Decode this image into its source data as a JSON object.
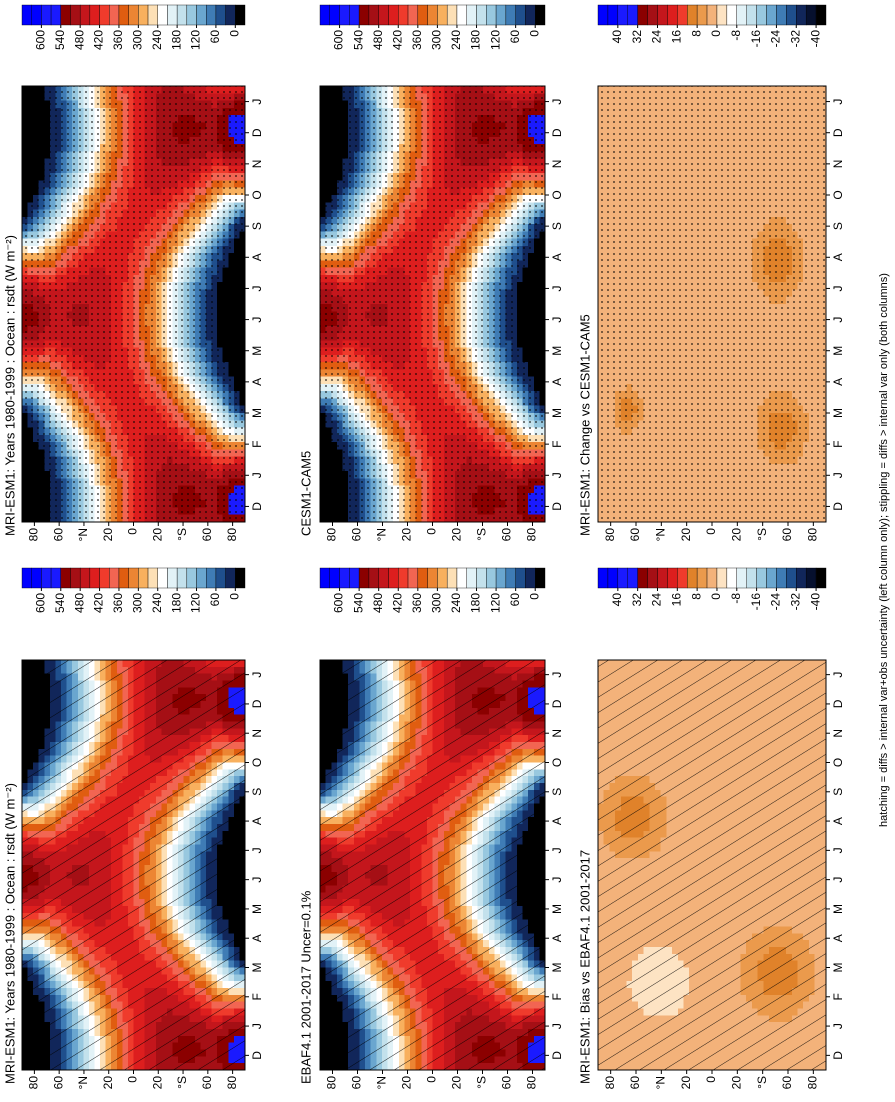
{
  "chart_data": [
    {
      "type": "contour",
      "title": "MRI-ESM1: Years 1980-1999 : Ocean : rsdt (W m⁻²)",
      "categories": [
        "D",
        "J",
        "F",
        "M",
        "A",
        "M",
        "J",
        "J",
        "A",
        "S",
        "O",
        "N",
        "D",
        "J"
      ],
      "ylim": [
        90,
        -90
      ],
      "yticks": [
        80,
        60,
        {
          "value": 40,
          "label": "°N"
        },
        20,
        0,
        {
          "value": -20,
          "label": "20"
        },
        {
          "value": -40,
          "label": "°S"
        },
        {
          "value": -60,
          "label": "60"
        },
        {
          "value": -80,
          "label": "80"
        }
      ],
      "colorbar": {
        "ticks": [
          600,
          540,
          480,
          420,
          360,
          300,
          240,
          180,
          120,
          60,
          0
        ],
        "colors": [
          "#0000ff",
          "#0000ff",
          "#1a1aff",
          "#1a1aff",
          "#8b0000",
          "#a50f15",
          "#c4161c",
          "#dd1e1e",
          "#ef3b2c",
          "#f26552",
          "#e05d10",
          "#ec8533",
          "#f8b05e",
          "#fde0b6",
          "#ffffff",
          "#e2f2f7",
          "#c3e1ec",
          "#98c8df",
          "#6aa6cf",
          "#3f7cb5",
          "#1f4f8d",
          "#11265a",
          "#000000"
        ]
      },
      "overlay": "hatching"
    },
    {
      "type": "contour",
      "title": "MRI-ESM1: Years 1980-1999 : Ocean : rsdt (W m⁻²)",
      "categories": [
        "D",
        "J",
        "F",
        "M",
        "A",
        "M",
        "J",
        "J",
        "A",
        "S",
        "O",
        "N",
        "D",
        "J"
      ],
      "ylim": [
        90,
        -90
      ],
      "yticks": [
        80,
        60,
        {
          "value": 40,
          "label": "°N"
        },
        20,
        0,
        {
          "value": -20,
          "label": "20"
        },
        {
          "value": -40,
          "label": "°S"
        },
        {
          "value": -60,
          "label": "60"
        },
        {
          "value": -80,
          "label": "80"
        }
      ],
      "colorbar": {
        "ticks": [
          600,
          540,
          480,
          420,
          360,
          300,
          240,
          180,
          120,
          60,
          0
        ],
        "colors": [
          "#0000ff",
          "#0000ff",
          "#1a1aff",
          "#1a1aff",
          "#8b0000",
          "#a50f15",
          "#c4161c",
          "#dd1e1e",
          "#ef3b2c",
          "#f26552",
          "#e05d10",
          "#ec8533",
          "#f8b05e",
          "#fde0b6",
          "#ffffff",
          "#e2f2f7",
          "#c3e1ec",
          "#98c8df",
          "#6aa6cf",
          "#3f7cb5",
          "#1f4f8d",
          "#11265a",
          "#000000"
        ]
      },
      "overlay": "stippling"
    },
    {
      "type": "contour",
      "title": "EBAF4.1 2001-2017 Uncer=0.1%",
      "categories": [
        "D",
        "J",
        "F",
        "M",
        "A",
        "M",
        "J",
        "J",
        "A",
        "S",
        "O",
        "N",
        "D",
        "J"
      ],
      "ylim": [
        90,
        -90
      ],
      "yticks": [
        80,
        60,
        {
          "value": 40,
          "label": "°N"
        },
        20,
        0,
        {
          "value": -20,
          "label": "20"
        },
        {
          "value": -40,
          "label": "°S"
        },
        {
          "value": -60,
          "label": "60"
        },
        {
          "value": -80,
          "label": "80"
        }
      ],
      "colorbar": {
        "ticks": [
          600,
          540,
          480,
          420,
          360,
          300,
          240,
          180,
          120,
          60,
          0
        ],
        "colors": [
          "#0000ff",
          "#0000ff",
          "#1a1aff",
          "#1a1aff",
          "#8b0000",
          "#a50f15",
          "#c4161c",
          "#dd1e1e",
          "#ef3b2c",
          "#f26552",
          "#e05d10",
          "#ec8533",
          "#f8b05e",
          "#fde0b6",
          "#ffffff",
          "#e2f2f7",
          "#c3e1ec",
          "#98c8df",
          "#6aa6cf",
          "#3f7cb5",
          "#1f4f8d",
          "#11265a",
          "#000000"
        ]
      },
      "overlay": "hatching"
    },
    {
      "type": "contour",
      "title": "CESM1-CAM5",
      "categories": [
        "D",
        "J",
        "F",
        "M",
        "A",
        "M",
        "J",
        "J",
        "A",
        "S",
        "O",
        "N",
        "D",
        "J"
      ],
      "ylim": [
        90,
        -90
      ],
      "yticks": [
        80,
        60,
        {
          "value": 40,
          "label": "°N"
        },
        20,
        0,
        {
          "value": -20,
          "label": "20"
        },
        {
          "value": -40,
          "label": "°S"
        },
        {
          "value": -60,
          "label": "60"
        },
        {
          "value": -80,
          "label": "80"
        }
      ],
      "colorbar": {
        "ticks": [
          600,
          540,
          480,
          420,
          360,
          300,
          240,
          180,
          120,
          60,
          0
        ],
        "colors": [
          "#0000ff",
          "#0000ff",
          "#1a1aff",
          "#1a1aff",
          "#8b0000",
          "#a50f15",
          "#c4161c",
          "#dd1e1e",
          "#ef3b2c",
          "#f26552",
          "#e05d10",
          "#ec8533",
          "#f8b05e",
          "#fde0b6",
          "#ffffff",
          "#e2f2f7",
          "#c3e1ec",
          "#98c8df",
          "#6aa6cf",
          "#3f7cb5",
          "#1f4f8d",
          "#11265a",
          "#000000"
        ]
      },
      "overlay": "stippling"
    },
    {
      "type": "contour",
      "title": "MRI-ESM1: Bias vs EBAF4.1 2001-2017",
      "categories": [
        "D",
        "J",
        "F",
        "M",
        "A",
        "M",
        "J",
        "J",
        "A",
        "S",
        "O",
        "N",
        "D",
        "J"
      ],
      "ylim": [
        90,
        -90
      ],
      "yticks": [
        80,
        60,
        {
          "value": 40,
          "label": "°N"
        },
        20,
        0,
        {
          "value": -20,
          "label": "20"
        },
        {
          "value": -40,
          "label": "°S"
        },
        {
          "value": -60,
          "label": "60"
        },
        {
          "value": -80,
          "label": "80"
        }
      ],
      "colorbar": {
        "ticks": [
          40,
          32,
          24,
          16,
          8,
          0,
          -8,
          -16,
          -24,
          -32,
          -40
        ],
        "colors": [
          "#0000ff",
          "#0000ff",
          "#1a1aff",
          "#1a1aff",
          "#8b0000",
          "#a50f15",
          "#c4161c",
          "#dd1e1e",
          "#ef3b2c",
          "#e0822a",
          "#eb9a4c",
          "#f3b27a",
          "#fde3c3",
          "#ffffff",
          "#e2f2f7",
          "#c3e1ec",
          "#98c8df",
          "#6aa6cf",
          "#3f7cb5",
          "#1f4f8d",
          "#11265a",
          "#06102e",
          "#000000"
        ]
      },
      "overlay": "hatching"
    },
    {
      "type": "contour",
      "title": "MRI-ESM1: Change vs CESM1-CAM5",
      "categories": [
        "D",
        "J",
        "F",
        "M",
        "A",
        "M",
        "J",
        "J",
        "A",
        "S",
        "O",
        "N",
        "D",
        "J"
      ],
      "ylim": [
        90,
        -90
      ],
      "yticks": [
        80,
        60,
        {
          "value": 40,
          "label": "°N"
        },
        20,
        0,
        {
          "value": -20,
          "label": "20"
        },
        {
          "value": -40,
          "label": "°S"
        },
        {
          "value": -60,
          "label": "60"
        },
        {
          "value": -80,
          "label": "80"
        }
      ],
      "colorbar": {
        "ticks": [
          40,
          32,
          24,
          16,
          8,
          0,
          -8,
          -16,
          -24,
          -32,
          -40
        ],
        "colors": [
          "#0000ff",
          "#0000ff",
          "#1a1aff",
          "#1a1aff",
          "#8b0000",
          "#a50f15",
          "#c4161c",
          "#dd1e1e",
          "#ef3b2c",
          "#e0822a",
          "#eb9a4c",
          "#f3b27a",
          "#fde3c3",
          "#ffffff",
          "#e2f2f7",
          "#c3e1ec",
          "#98c8df",
          "#6aa6cf",
          "#3f7cb5",
          "#1f4f8d",
          "#11265a",
          "#06102e",
          "#000000"
        ]
      },
      "overlay": "stippling"
    }
  ],
  "footnote": "hatching = diffs > internal var+obs uncertainty (left column only); stippling = diffs > internal var only (both columns)"
}
